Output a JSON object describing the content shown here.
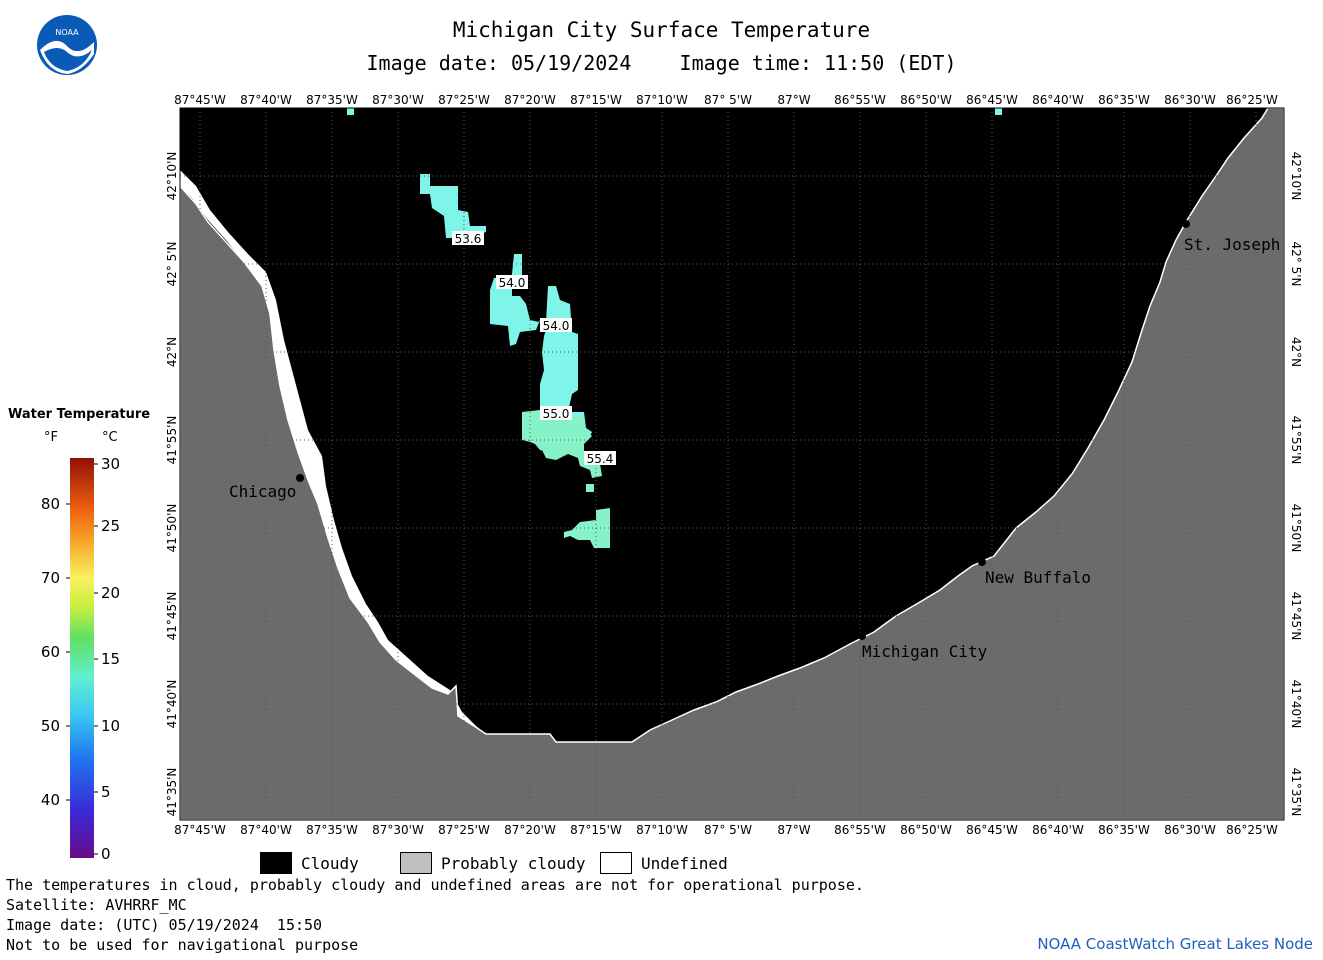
{
  "header": {
    "title": "Michigan City Surface Temperature",
    "subtitle": "Image date: 05/19/2024    Image time: 11:50 (EDT)"
  },
  "logo": {
    "text": "NOAA",
    "icon": "noaa-logo-icon"
  },
  "map": {
    "lon_labels": [
      "87°45'W",
      "87°40'W",
      "87°35'W",
      "87°30'W",
      "87°25'W",
      "87°20'W",
      "87°15'W",
      "87°10'W",
      "87° 5'W",
      "87°W",
      "86°55'W",
      "86°50'W",
      "86°45'W",
      "86°40'W",
      "86°35'W",
      "86°30'W",
      "86°25'W"
    ],
    "lat_labels": [
      "42°10'N",
      "42° 5'N",
      "42°N",
      "41°55'N",
      "41°50'N",
      "41°45'N",
      "41°40'N",
      "41°35'N"
    ],
    "places": [
      {
        "name": "Chicago"
      },
      {
        "name": "St. Joseph"
      },
      {
        "name": "New Buffalo"
      },
      {
        "name": "Michigan City"
      }
    ],
    "contour_labels": [
      "53.6",
      "54.0",
      "54.0",
      "55.0",
      "55.4"
    ],
    "colors": {
      "cloud": "#000000",
      "land": "#6b6b6b",
      "water_cyan": "#7ff5ea",
      "water_mint": "#86f2c8",
      "undefined": "#ffffff"
    }
  },
  "legend": {
    "title": "Water Temperature",
    "unit_f": "°F",
    "unit_c": "°C",
    "f_ticks": [
      "80",
      "70",
      "60",
      "50",
      "40"
    ],
    "c_ticks": [
      "30",
      "25",
      "20",
      "15",
      "10",
      "5",
      "0"
    ]
  },
  "key": {
    "items": [
      {
        "label": "Cloudy",
        "color": "#000000"
      },
      {
        "label": "Probably cloudy",
        "color": "#bfbfbf"
      },
      {
        "label": "Undefined",
        "color": "#ffffff"
      }
    ]
  },
  "footer": {
    "note1": "The temperatures in cloud, probably cloudy and undefined areas are not for operational purpose.",
    "note2": "Satellite: AVHRRF_MC",
    "note3": "Image date: (UTC) 05/19/2024  15:50",
    "note4": "Not to be used for navigational purpose",
    "credit": "NOAA CoastWatch Great Lakes Node"
  }
}
